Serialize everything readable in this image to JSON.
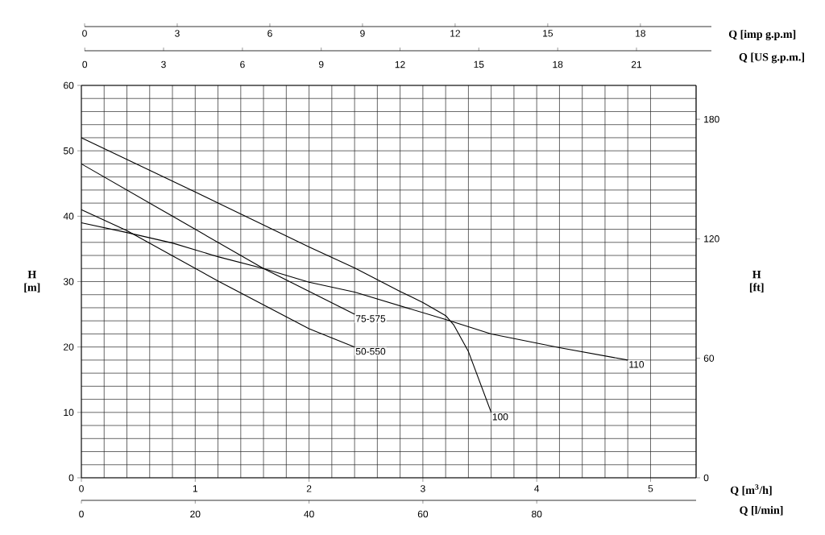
{
  "chart_data": {
    "type": "line",
    "xlabel": "Q [m$^{3}$/h]",
    "ylabel": "H [m]",
    "y2label": "H [ft]",
    "x2label": "Q [imp g.p.m]",
    "xlim": [
      0,
      5.4
    ],
    "xticks": [
      0,
      1,
      2,
      3,
      4,
      5
    ],
    "ylim": [
      0,
      60
    ],
    "yticks": [
      0,
      10,
      20,
      30,
      40,
      50,
      60
    ],
    "y2lim": [
      0,
      197
    ],
    "y2ticks": [
      0,
      60,
      120,
      180
    ],
    "x2lim": [
      0,
      20.3
    ],
    "x2ticks": [
      0,
      3,
      6,
      9,
      12,
      15,
      18
    ],
    "annotations": [
      "0",
      "3",
      "6",
      "9",
      "12",
      "15",
      "18",
      "21",
      "Q [US g.p.m.]",
      "0",
      "20",
      "40",
      "60",
      "80",
      "Q [l/min]"
    ],
    "grid": true,
    "marker": "none",
    "line_style": "solid",
    "series": [
      {
        "name": "75-575",
        "color": "#000000",
        "x": [
          0,
          0.8,
          1.6,
          2.4
        ],
        "values": [
          48,
          40,
          32,
          25
        ]
      },
      {
        "name": "50-550",
        "color": "#000000",
        "x": [
          0,
          0.4,
          1.2,
          2.0,
          2.4
        ],
        "values": [
          41,
          37.8,
          30.1,
          22.8,
          20
        ]
      },
      {
        "name": "110",
        "color": "#000000",
        "x": [
          0,
          0.4,
          0.8,
          1.2,
          1.6,
          2.0,
          2.4,
          3.2,
          3.6,
          4.2,
          4.8
        ],
        "values": [
          39,
          37.5,
          35.9,
          33.8,
          32,
          29.9,
          28.4,
          24.2,
          22,
          19.9,
          18
        ]
      },
      {
        "name": "100",
        "color": "#000000",
        "x": [
          0,
          1,
          2,
          2.4,
          2.8,
          3.0,
          3.2,
          3.27,
          3.4,
          3.6
        ],
        "values": [
          52,
          43.7,
          35.3,
          32.1,
          28.5,
          26.8,
          24.8,
          23.4,
          19.3,
          10
        ]
      }
    ]
  }
}
